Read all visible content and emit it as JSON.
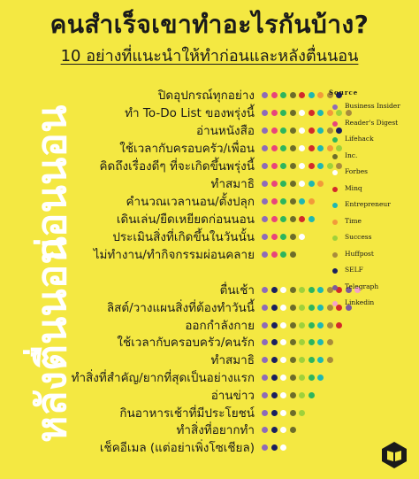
{
  "title": "คนสำเร็จเขาทำอะไรกันบ้าง?",
  "subtitle": "10 อย่างที่แนะนำให้ทำก่อนและหลังตื่นนอน",
  "section_before": "ก่อนนอน",
  "section_after": "หลังตื่นนอน",
  "sources": [
    {
      "name": "Business Insider",
      "color": "#8e6bb8"
    },
    {
      "name": "Reader's Digest",
      "color": "#e8457a"
    },
    {
      "name": "Lifehack",
      "color": "#2db55d"
    },
    {
      "name": "Inc.",
      "color": "#6d6d2a"
    },
    {
      "name": "Forbes",
      "color": "#ffffff"
    },
    {
      "name": "Minq",
      "color": "#d32a2a"
    },
    {
      "name": "Entrepreneur",
      "color": "#1fb7b2"
    },
    {
      "name": "Time",
      "color": "#f29a3a"
    },
    {
      "name": "Success",
      "color": "#9fd13a"
    },
    {
      "name": "Huffpost",
      "color": "#a88b3c"
    },
    {
      "name": "SELF",
      "color": "#1a1f5e"
    },
    {
      "name": "Telegraph",
      "color": "#7c5b9b"
    },
    {
      "name": "Linkedin",
      "color": "#f5a3c8"
    }
  ],
  "legend": {
    "title": "Source"
  },
  "before_items": [
    {
      "label": "ปิดอุปกรณ์ทุกอย่าง",
      "dots": [
        0,
        1,
        2,
        3,
        5,
        6,
        7,
        9,
        10
      ]
    },
    {
      "label": "ทำ To-Do List ของพรุ่งนี้",
      "dots": [
        0,
        1,
        2,
        3,
        4,
        5,
        6,
        7,
        8,
        9
      ]
    },
    {
      "label": "อ่านหนังสือ",
      "dots": [
        0,
        1,
        2,
        3,
        4,
        5,
        6,
        9,
        10
      ]
    },
    {
      "label": "ใช้เวลากับครอบครัว/เพื่อน",
      "dots": [
        0,
        1,
        2,
        3,
        4,
        5,
        6,
        7,
        8
      ]
    },
    {
      "label": "คิดถึงเรื่องดีๆ ที่จะเกิดขึ้นพรุ่งนี้",
      "dots": [
        0,
        1,
        2,
        3,
        4,
        5,
        6,
        8,
        9
      ]
    },
    {
      "label": "ทำสมาธิ",
      "dots": [
        0,
        1,
        2,
        3,
        4,
        6,
        7
      ]
    },
    {
      "label": "คำนวณเวลานอน/ตั้งปลุก",
      "dots": [
        0,
        1,
        2,
        3,
        6,
        7
      ]
    },
    {
      "label": "เดินเล่น/ยืดเหยียดก่อนนอน",
      "dots": [
        0,
        1,
        2,
        3,
        5,
        6
      ]
    },
    {
      "label": "ประเมินสิ่งที่เกิดขึ้นในวันนั้น",
      "dots": [
        0,
        1,
        2,
        3,
        4
      ]
    },
    {
      "label": "ไม่ทำงาน/ทำกิจกรรมผ่อนคลาย",
      "dots": [
        0,
        1,
        2,
        3
      ]
    }
  ],
  "after_items": [
    {
      "label": "ตื่นเช้า",
      "dots": [
        0,
        10,
        4,
        3,
        8,
        2,
        6,
        9,
        5,
        11,
        12
      ]
    },
    {
      "label": "ลิสต์/วางแผนสิ่งที่ต้องทำวันนี้",
      "dots": [
        0,
        10,
        4,
        3,
        8,
        2,
        6,
        9,
        5,
        11
      ]
    },
    {
      "label": "ออกกำลังกาย",
      "dots": [
        0,
        10,
        4,
        3,
        8,
        2,
        6,
        9,
        5
      ]
    },
    {
      "label": "ใช้เวลากับครอบครัว/คนรัก",
      "dots": [
        0,
        10,
        4,
        3,
        8,
        2,
        6,
        9
      ]
    },
    {
      "label": "ทำสมาธิ",
      "dots": [
        0,
        10,
        4,
        3,
        8,
        2,
        6,
        9
      ]
    },
    {
      "label": "ทำสิ่งที่สำคัญ/ยากที่สุดเป็นอย่างแรก",
      "dots": [
        0,
        10,
        4,
        3,
        8,
        2,
        6
      ]
    },
    {
      "label": "อ่านข่าว",
      "dots": [
        0,
        10,
        4,
        3,
        8,
        2
      ]
    },
    {
      "label": "กินอาหารเช้าที่มีประโยชน์",
      "dots": [
        0,
        10,
        4,
        3,
        8
      ]
    },
    {
      "label": "ทำสิ่งที่อยากทำ",
      "dots": [
        0,
        10,
        4,
        3
      ]
    },
    {
      "label": "เช็คอีเมล (แต่อย่าเพิ่งโซเชียล)",
      "dots": [
        0,
        10,
        4
      ]
    }
  ]
}
